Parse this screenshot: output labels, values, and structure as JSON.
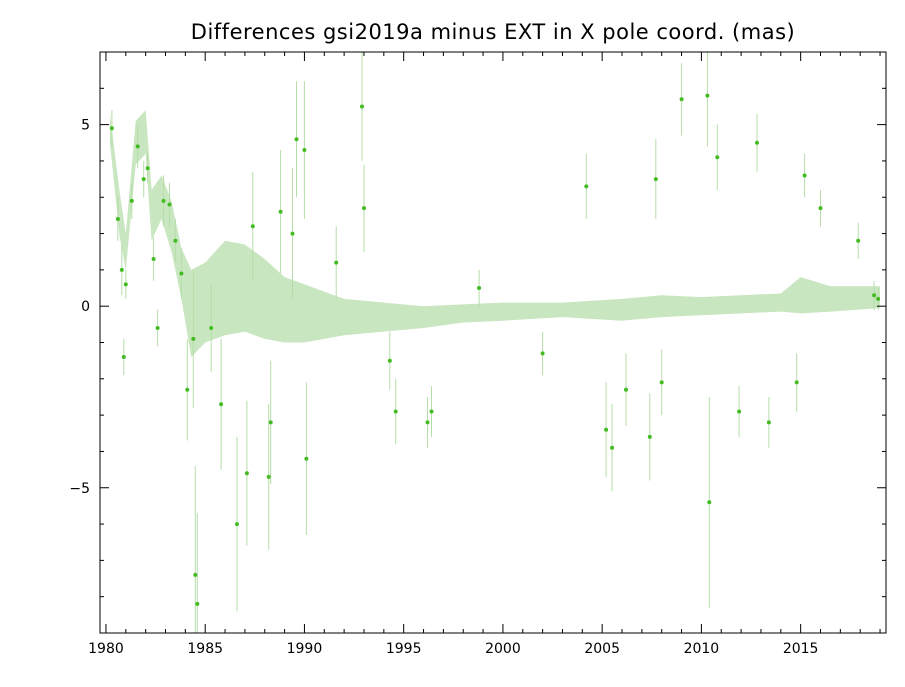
{
  "chart_data": {
    "type": "scatter",
    "title": "Differences gsi2019a minus EXT in X pole coord. (mas)",
    "xlabel": "",
    "ylabel": "",
    "xlim": [
      1979.7,
      2019.3
    ],
    "ylim": [
      -9,
      7
    ],
    "x_ticks": [
      1980,
      1985,
      1990,
      1995,
      2000,
      2005,
      2010,
      2015
    ],
    "y_ticks": [
      -5,
      0,
      5
    ],
    "grid": false,
    "legend": "none",
    "colors": {
      "points": "#44bb22",
      "error_bars": "#b5ddaa",
      "frame": "#000000"
    },
    "series": [
      {
        "points": [
          [
            1980.3,
            4.9,
            0.5
          ],
          [
            1980.6,
            2.4,
            0.6
          ],
          [
            1980.8,
            1.0,
            0.7
          ],
          [
            1980.9,
            -1.4,
            0.5
          ],
          [
            1981.0,
            0.6,
            0.4
          ],
          [
            1981.3,
            2.9,
            0.5
          ],
          [
            1981.6,
            4.4,
            0.6
          ],
          [
            1981.9,
            3.5,
            0.5
          ],
          [
            1982.1,
            3.8,
            0.4
          ],
          [
            1982.4,
            1.3,
            0.6
          ],
          [
            1982.6,
            -0.6,
            0.5
          ],
          [
            1982.9,
            2.9,
            0.7
          ],
          [
            1983.2,
            2.8,
            0.6
          ],
          [
            1983.5,
            1.8,
            0.6
          ],
          [
            1983.8,
            0.9,
            0.7
          ],
          [
            1984.1,
            -2.3,
            1.4
          ],
          [
            1984.4,
            -0.9,
            1.9
          ],
          [
            1984.5,
            -7.4,
            3.0
          ],
          [
            1984.6,
            -8.2,
            2.5
          ],
          [
            1985.3,
            -0.6,
            1.2
          ],
          [
            1985.8,
            -2.7,
            1.8
          ],
          [
            1986.6,
            -6.0,
            2.4
          ],
          [
            1987.1,
            -4.6,
            2.0
          ],
          [
            1987.4,
            2.2,
            1.5
          ],
          [
            1988.2,
            -4.7,
            2.0
          ],
          [
            1988.3,
            -3.2,
            1.7
          ],
          [
            1988.8,
            2.6,
            1.7
          ],
          [
            1989.4,
            2.0,
            1.8
          ],
          [
            1989.6,
            4.6,
            1.6
          ],
          [
            1990.0,
            4.3,
            1.9
          ],
          [
            1990.1,
            -4.2,
            2.1
          ],
          [
            1991.6,
            1.2,
            1.0
          ],
          [
            1992.9,
            5.5,
            1.5
          ],
          [
            1993.0,
            2.7,
            1.2
          ],
          [
            1994.3,
            -1.5,
            0.8
          ],
          [
            1994.6,
            -2.9,
            0.9
          ],
          [
            1996.2,
            -3.2,
            0.7
          ],
          [
            1996.4,
            -2.9,
            0.7
          ],
          [
            1998.8,
            0.5,
            0.5
          ],
          [
            2002.0,
            -1.3,
            0.6
          ],
          [
            2004.2,
            3.3,
            0.9
          ],
          [
            2005.2,
            -3.4,
            1.3
          ],
          [
            2005.5,
            -3.9,
            1.2
          ],
          [
            2006.2,
            -2.3,
            1.0
          ],
          [
            2007.4,
            -3.6,
            1.2
          ],
          [
            2007.7,
            3.5,
            1.1
          ],
          [
            2008.0,
            -2.1,
            0.9
          ],
          [
            2009.0,
            5.7,
            1.0
          ],
          [
            2010.3,
            5.8,
            1.4
          ],
          [
            2010.4,
            -5.4,
            2.9
          ],
          [
            2010.8,
            4.1,
            0.9
          ],
          [
            2011.9,
            -2.9,
            0.7
          ],
          [
            2012.8,
            4.5,
            0.8
          ],
          [
            2013.4,
            -3.2,
            0.7
          ],
          [
            2014.8,
            -2.1,
            0.8
          ],
          [
            2015.2,
            3.6,
            0.6
          ],
          [
            2016.0,
            2.7,
            0.5
          ],
          [
            2017.9,
            1.8,
            0.5
          ],
          [
            2018.7,
            0.3,
            0.4
          ],
          [
            2018.9,
            0.2,
            0.3
          ]
        ],
        "envelope": [
          [
            1980.2,
            4.9,
            0.4
          ],
          [
            1980.7,
            2.5,
            0.6
          ],
          [
            1981.0,
            1.5,
            0.5
          ],
          [
            1981.5,
            4.5,
            0.6
          ],
          [
            1982.0,
            4.8,
            0.6
          ],
          [
            1982.3,
            2.5,
            0.7
          ],
          [
            1982.8,
            3.0,
            0.6
          ],
          [
            1983.3,
            2.2,
            0.7
          ],
          [
            1983.8,
            0.9,
            0.7
          ],
          [
            1984.3,
            -0.2,
            1.2
          ],
          [
            1985.0,
            0.1,
            1.1
          ],
          [
            1986.0,
            0.5,
            1.3
          ],
          [
            1987.0,
            0.5,
            1.2
          ],
          [
            1988.0,
            0.2,
            1.1
          ],
          [
            1989.0,
            -0.1,
            0.9
          ],
          [
            1990.0,
            -0.2,
            0.8
          ],
          [
            1992.0,
            -0.3,
            0.5
          ],
          [
            1994.0,
            -0.3,
            0.4
          ],
          [
            1996.0,
            -0.3,
            0.3
          ],
          [
            1998.0,
            -0.2,
            0.25
          ],
          [
            2000.0,
            -0.15,
            0.25
          ],
          [
            2003.0,
            -0.1,
            0.2
          ],
          [
            2006.0,
            -0.1,
            0.3
          ],
          [
            2008.0,
            0.0,
            0.3
          ],
          [
            2010.0,
            0.0,
            0.25
          ],
          [
            2012.0,
            0.05,
            0.25
          ],
          [
            2014.0,
            0.1,
            0.25
          ],
          [
            2015.0,
            0.3,
            0.5
          ],
          [
            2016.5,
            0.2,
            0.35
          ],
          [
            2019.0,
            0.25,
            0.3
          ]
        ]
      }
    ]
  }
}
